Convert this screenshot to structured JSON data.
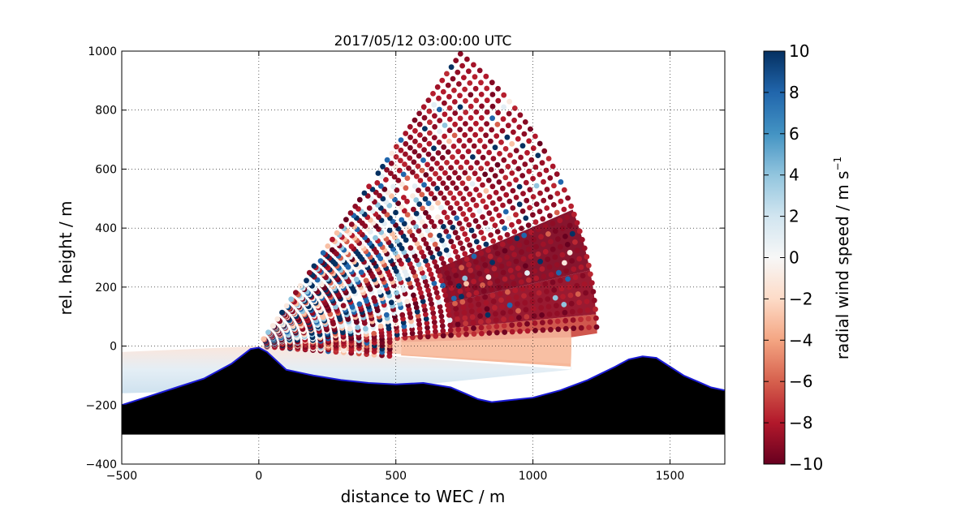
{
  "chart_data": {
    "type": "scatter",
    "title": "2017/05/12 03:00:00 UTC",
    "xlabel": "distance to WEC / m",
    "ylabel": "rel. height / m",
    "xlim": [
      -500,
      1700
    ],
    "ylim": [
      -400,
      1000
    ],
    "xticks": [
      -500,
      0,
      500,
      1000,
      1500
    ],
    "yticks": [
      -400,
      -200,
      0,
      200,
      400,
      600,
      800,
      1000
    ],
    "grid": true,
    "grid_style": "dotted",
    "colorbar": {
      "label": "radial wind speed / m s",
      "label_superscript": "−1",
      "range": [
        -10,
        10
      ],
      "ticks": [
        10,
        8,
        6,
        4,
        2,
        0,
        -2,
        -4,
        -6,
        -8,
        -10
      ],
      "tick_labels": [
        "10",
        "8",
        "6",
        "4",
        "2",
        "0",
        "−2",
        "−4",
        "−6",
        "−8",
        "−10"
      ],
      "colormap": "RdBu",
      "colors": [
        "#67001f",
        "#b2182b",
        "#d6604d",
        "#f4a582",
        "#fddbc7",
        "#f7f7f7",
        "#d1e5f0",
        "#92c5de",
        "#4393c3",
        "#2166ac",
        "#053061"
      ]
    },
    "scan_sector": {
      "origin": [
        0,
        0
      ],
      "max_range_m": 1235,
      "elevation_deg": [
        -4,
        54
      ]
    },
    "terrain": {
      "fill": "#000000",
      "outline": "#1b1bd6",
      "floor": -300,
      "x": [
        -500,
        -400,
        -300,
        -200,
        -100,
        -30,
        0,
        30,
        100,
        200,
        300,
        400,
        500,
        600,
        700,
        750,
        800,
        850,
        900,
        1000,
        1100,
        1200,
        1300,
        1350,
        1400,
        1450,
        1500,
        1550,
        1600,
        1650,
        1700
      ],
      "y": [
        -200,
        -170,
        -140,
        -110,
        -60,
        -10,
        -5,
        -20,
        -80,
        -100,
        -115,
        -125,
        -130,
        -125,
        -140,
        -160,
        -180,
        -190,
        -185,
        -175,
        -150,
        -115,
        -70,
        -45,
        -35,
        -40,
        -70,
        -100,
        -120,
        -140,
        -150
      ]
    },
    "wind_field_note_series": [
      {
        "region": "near-surface jet (below ~50 m above terrain)",
        "radial_wind": -8,
        "color": "#b2182b"
      },
      {
        "region": "valley layer above terrain",
        "radial_wind": 1,
        "color": "#d1e5f0"
      },
      {
        "region": "upper sector",
        "radial_wind_range": [
          -10,
          10
        ]
      }
    ]
  }
}
